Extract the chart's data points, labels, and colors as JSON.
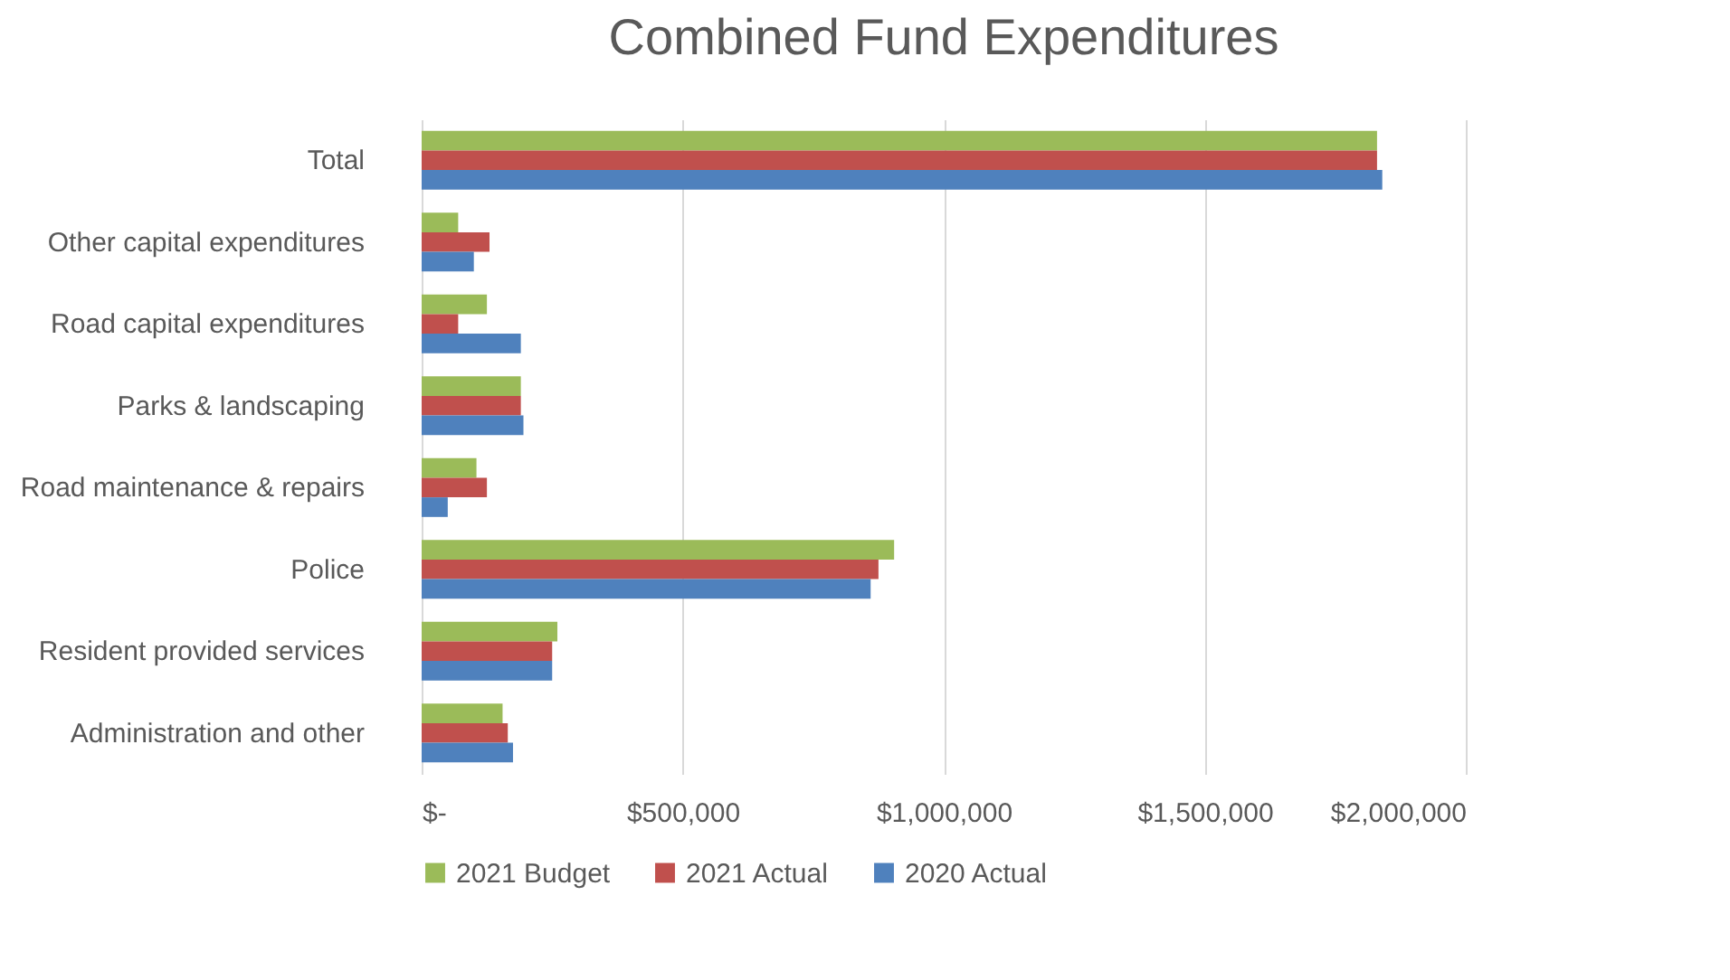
{
  "chart_data": {
    "type": "bar",
    "orientation": "horizontal",
    "title": "Combined Fund Expenditures",
    "categories": [
      "Total",
      "Other capital expenditures",
      "Road capital expenditures",
      "Parks & landscaping",
      "Road maintenance & repairs",
      "Police",
      "Resident provided services",
      "Administration and other"
    ],
    "series": [
      {
        "name": "2021 Budget",
        "color": "#9bbb59",
        "values": [
          1830000,
          70000,
          125000,
          190000,
          105000,
          905000,
          260000,
          155000
        ]
      },
      {
        "name": "2021 Actual",
        "color": "#c0504d",
        "values": [
          1830000,
          130000,
          70000,
          190000,
          125000,
          875000,
          250000,
          165000
        ]
      },
      {
        "name": "2020 Actual",
        "color": "#4f81bd",
        "values": [
          1840000,
          100000,
          190000,
          195000,
          50000,
          860000,
          250000,
          175000
        ]
      }
    ],
    "xlim": [
      0,
      2000000
    ],
    "xticks": [
      {
        "value": 0,
        "label": "$-"
      },
      {
        "value": 500000,
        "label": "$500,000"
      },
      {
        "value": 1000000,
        "label": "$1,000,000"
      },
      {
        "value": 1500000,
        "label": "$1,500,000"
      },
      {
        "value": 2000000,
        "label": "$2,000,000"
      }
    ],
    "grid": "x",
    "legend": "bottom"
  }
}
